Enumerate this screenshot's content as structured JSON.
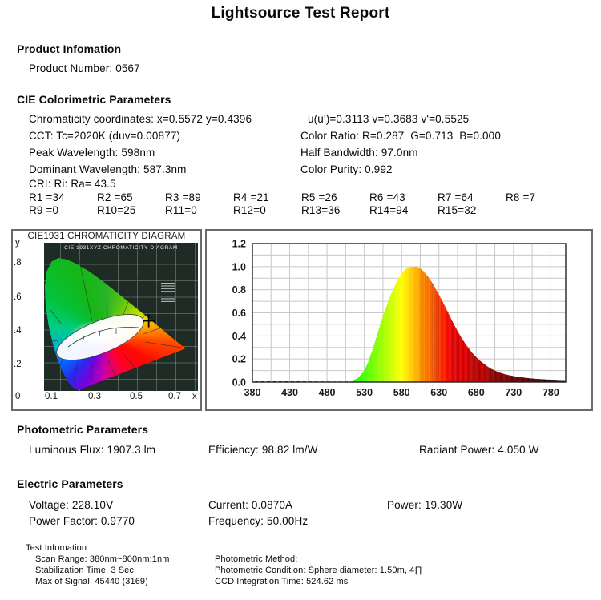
{
  "report": {
    "title": "Lightsource Test Report",
    "sections": {
      "product": {
        "heading": "Product Infomation",
        "product_number": "Product Number: 0567"
      },
      "cie": {
        "heading": "CIE Colorimetric Parameters",
        "rows": [
          {
            "left": "Chromaticity coordinates: x=0.5572 y=0.4396",
            "right": "u(u')=0.3113 v=0.3683 v'=0.5525"
          },
          {
            "left": "CCT: Tc=2020K (duv=0.00877)",
            "right": "Color Ratio: R=0.287  G=0.713  B=0.000"
          },
          {
            "left": "Peak Wavelength: 598nm",
            "right": "Half Bandwidth: 97.0nm"
          },
          {
            "left": "Dominant Wavelength: 587.3nm",
            "right": "Color Purity: 0.992"
          }
        ],
        "cri_line": "CRI: Ri: Ra= 43.5",
        "cri_row1": [
          "R1 =34",
          "R2 =65",
          "R3 =89",
          "R4 =21",
          "R5 =26",
          "R6 =43",
          "R7 =64",
          "R8 =7"
        ],
        "cri_row2": [
          "R9 =0",
          "R10=25",
          "R11=0",
          "R12=0",
          "R13=36",
          "R14=94",
          "R15=32"
        ]
      },
      "photometric": {
        "heading": "Photometric Parameters",
        "items": [
          "Luminous Flux: 1907.3 lm",
          "Efficiency: 98.82 lm/W",
          "Radiant Power: 4.050 W"
        ]
      },
      "electric": {
        "heading": "Electric Parameters",
        "row1": [
          "Voltage: 228.10V",
          "Current: 0.0870A",
          "Power: 19.30W"
        ],
        "row2": [
          "Power Factor: 0.9770",
          "Frequency: 50.00Hz"
        ]
      },
      "test_info": {
        "heading": "Test Infomation",
        "left": [
          "Scan Range: 380nm~800nm:1nm",
          "Stabilization Time: 3 Sec",
          "Max of Signal: 45440 (3169)"
        ],
        "right": [
          "Photometric Method:",
          "Photometric Condition: Sphere diameter: 1.50m, 4∏",
          "CCD Integration Time: 524.62 ms"
        ]
      }
    }
  },
  "colors": {
    "text": "#0a0a0a",
    "box_border": "#6a6a6a",
    "plot_grid": "#c8c8c8",
    "plot_border": "#222222",
    "cie_background": "#1f2b25",
    "marker": "#000000"
  },
  "chart_data": [
    {
      "type": "scatter",
      "name": "cie1931-chromaticity-diagram",
      "title": "CIE1931 CHROMATICITY DIAGRAM",
      "inner_title": "CIE 1931XYZ CHROMATICITY DIAGRAM",
      "xlabel": "x",
      "ylabel": "y",
      "x_ticks": [
        "0",
        "0.1",
        "0.3",
        "0.5",
        "0.7"
      ],
      "y_ticks": [
        ".8",
        ".6",
        ".4",
        ".2"
      ],
      "xlim": [
        0,
        0.8
      ],
      "ylim": [
        0,
        0.93
      ],
      "grid": true,
      "points": [
        {
          "x": 0.5572,
          "y": 0.4396,
          "marker": "cross",
          "color": "#000000"
        }
      ]
    },
    {
      "type": "area",
      "name": "spectral-power-distribution",
      "x_ticks": [
        "380",
        "430",
        "480",
        "530",
        "580",
        "630",
        "680",
        "730",
        "780"
      ],
      "y_ticks": [
        "0.0",
        "0.2",
        "0.4",
        "0.6",
        "0.8",
        "1.0",
        "1.2"
      ],
      "xlim": [
        380,
        800
      ],
      "ylim": [
        0,
        1.2
      ],
      "grid": true,
      "x_start": 380,
      "x_step": 5,
      "peak": {
        "wavelength_nm": 598,
        "value": 1.0
      },
      "values": [
        0.01,
        0.01,
        0.01,
        0.01,
        0.01,
        0.01,
        0.01,
        0.01,
        0.01,
        0.01,
        0.01,
        0.01,
        0.01,
        0.01,
        0.01,
        0.01,
        0.01,
        0.01,
        0.01,
        0.01,
        0.01,
        0.01,
        0.01,
        0.01,
        0.01,
        0.01,
        0.01,
        0.015,
        0.03,
        0.06,
        0.1,
        0.17,
        0.26,
        0.36,
        0.47,
        0.57,
        0.66,
        0.75,
        0.82,
        0.89,
        0.94,
        0.975,
        0.995,
        1.0,
        1.0,
        0.985,
        0.955,
        0.915,
        0.87,
        0.815,
        0.755,
        0.695,
        0.63,
        0.565,
        0.5,
        0.44,
        0.385,
        0.335,
        0.29,
        0.25,
        0.215,
        0.185,
        0.16,
        0.135,
        0.115,
        0.1,
        0.085,
        0.075,
        0.065,
        0.058,
        0.052,
        0.046,
        0.042,
        0.038,
        0.034,
        0.031,
        0.028,
        0.026,
        0.024,
        0.022,
        0.021,
        0.02,
        0.018,
        0.017,
        0.016
      ]
    }
  ]
}
